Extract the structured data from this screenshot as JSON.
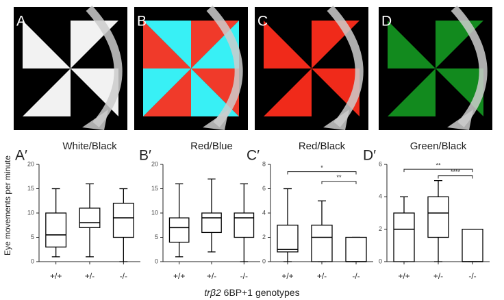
{
  "panels": [
    {
      "label": "A"
    },
    {
      "label": "B"
    },
    {
      "label": "C"
    },
    {
      "label": "D"
    }
  ],
  "y_label": "Eye movements per minute",
  "x_label_italic": "trβ2",
  "x_label": "6BP+1 genotypes",
  "chart_data": [
    {
      "type": "box",
      "panel": "A′",
      "title": "White/Black",
      "categories": [
        "+/+",
        "+/-",
        "-/-"
      ],
      "boxes": [
        {
          "min": 1,
          "q1": 3,
          "median": 5.5,
          "q3": 10,
          "max": 15
        },
        {
          "min": 1,
          "q1": 7,
          "median": 8,
          "q3": 11,
          "max": 16
        },
        {
          "min": 0,
          "q1": 5,
          "median": 9,
          "q3": 12,
          "max": 15
        }
      ],
      "ylim": [
        0,
        20
      ],
      "yticks": [
        0,
        5,
        10,
        15,
        20
      ],
      "significance": []
    },
    {
      "type": "box",
      "panel": "B′",
      "title": "Red/Blue",
      "categories": [
        "+/+",
        "+/-",
        "-/-"
      ],
      "boxes": [
        {
          "min": 1,
          "q1": 4,
          "median": 7,
          "q3": 9,
          "max": 16
        },
        {
          "min": 2,
          "q1": 6,
          "median": 9,
          "q3": 10,
          "max": 17
        },
        {
          "min": 0,
          "q1": 5,
          "median": 9,
          "q3": 10,
          "max": 16
        }
      ],
      "ylim": [
        0,
        20
      ],
      "yticks": [
        0,
        5,
        10,
        15,
        20
      ],
      "significance": []
    },
    {
      "type": "box",
      "panel": "C′",
      "title": "Red/Black",
      "categories": [
        "+/+",
        "+/-",
        "-/-"
      ],
      "boxes": [
        {
          "min": 0,
          "q1": 0.8,
          "median": 1,
          "q3": 3,
          "max": 6
        },
        {
          "min": 0,
          "q1": 0,
          "median": 2,
          "q3": 3,
          "max": 5
        },
        {
          "min": 0,
          "q1": 0,
          "median": 0,
          "q3": 2,
          "max": 2
        }
      ],
      "ylim": [
        0,
        8
      ],
      "yticks": [
        0,
        2,
        4,
        6,
        8
      ],
      "significance": [
        {
          "from": "+/+",
          "to": "-/-",
          "y": 7.4,
          "label": "*"
        },
        {
          "from": "+/-",
          "to": "-/-",
          "y": 6.6,
          "label": "**"
        }
      ]
    },
    {
      "type": "box",
      "panel": "D′",
      "title": "Green/Black",
      "categories": [
        "+/+",
        "+/-",
        "-/-"
      ],
      "boxes": [
        {
          "min": 0,
          "q1": 0,
          "median": 2,
          "q3": 3,
          "max": 4
        },
        {
          "min": 0,
          "q1": 1.5,
          "median": 3,
          "q3": 4,
          "max": 5
        },
        {
          "min": 0,
          "q1": 0,
          "median": 0,
          "q3": 2,
          "max": 2
        }
      ],
      "ylim": [
        0,
        6
      ],
      "yticks": [
        0,
        2,
        4,
        6
      ],
      "significance": [
        {
          "from": "+/+",
          "to": "-/-",
          "y": 5.7,
          "label": "**"
        },
        {
          "from": "+/-",
          "to": "-/-",
          "y": 5.3,
          "label": "****"
        }
      ]
    }
  ]
}
